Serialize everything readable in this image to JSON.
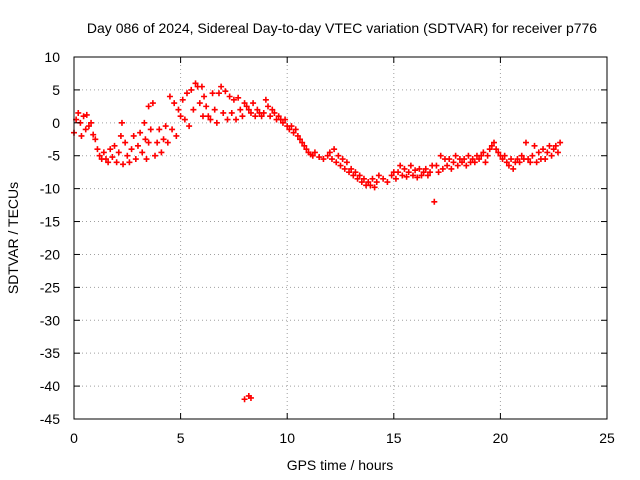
{
  "chart_data": {
    "type": "scatter",
    "title": "Day 086 of 2024, Sidereal Day-to-day VTEC variation (SDTVAR) for receiver p776",
    "xlabel": "GPS time / hours",
    "ylabel": "SDTVAR / TECUs",
    "xlim": [
      0,
      25
    ],
    "ylim": [
      -45,
      10
    ],
    "xticks": [
      0,
      5,
      10,
      15,
      20,
      25
    ],
    "yticks": [
      10,
      5,
      0,
      -5,
      -10,
      -15,
      -20,
      -25,
      -30,
      -35,
      -40,
      -45
    ],
    "grid": true,
    "marker": "plus",
    "color": "#ff0000",
    "series": [
      {
        "name": "SDTVAR",
        "points": [
          [
            0.0,
            -1.5
          ],
          [
            0.1,
            0.5
          ],
          [
            0.2,
            1.5
          ],
          [
            0.3,
            0.0
          ],
          [
            0.35,
            -2.0
          ],
          [
            0.45,
            1.0
          ],
          [
            0.55,
            -1.0
          ],
          [
            0.6,
            1.2
          ],
          [
            0.7,
            -0.5
          ],
          [
            0.8,
            0.0
          ],
          [
            0.9,
            -1.8
          ],
          [
            1.0,
            -2.5
          ],
          [
            1.1,
            -4.0
          ],
          [
            1.2,
            -5.0
          ],
          [
            1.3,
            -5.5
          ],
          [
            1.4,
            -4.5
          ],
          [
            1.5,
            -5.5
          ],
          [
            1.6,
            -6.0
          ],
          [
            1.7,
            -4.0
          ],
          [
            1.8,
            -5.2
          ],
          [
            1.9,
            -3.5
          ],
          [
            2.0,
            -6.0
          ],
          [
            2.1,
            -4.5
          ],
          [
            2.2,
            -2.0
          ],
          [
            2.25,
            0.0
          ],
          [
            2.3,
            -6.3
          ],
          [
            2.4,
            -3.0
          ],
          [
            2.5,
            -5.0
          ],
          [
            2.6,
            -6.0
          ],
          [
            2.7,
            -4.0
          ],
          [
            2.8,
            -2.0
          ],
          [
            2.9,
            -5.5
          ],
          [
            3.0,
            -3.5
          ],
          [
            3.1,
            -1.5
          ],
          [
            3.2,
            -4.5
          ],
          [
            3.3,
            0.0
          ],
          [
            3.35,
            -2.5
          ],
          [
            3.4,
            -5.5
          ],
          [
            3.5,
            -3.0
          ],
          [
            3.5,
            2.5
          ],
          [
            3.6,
            -1.0
          ],
          [
            3.7,
            3.0
          ],
          [
            3.8,
            -5.0
          ],
          [
            3.9,
            -3.0
          ],
          [
            4.0,
            -1.0
          ],
          [
            4.1,
            -4.5
          ],
          [
            4.2,
            -2.5
          ],
          [
            4.3,
            -0.5
          ],
          [
            4.4,
            -3.0
          ],
          [
            4.5,
            4.0
          ],
          [
            4.6,
            -1.0
          ],
          [
            4.7,
            3.0
          ],
          [
            4.8,
            -2.0
          ],
          [
            4.9,
            2.0
          ],
          [
            5.0,
            1.0
          ],
          [
            5.1,
            3.5
          ],
          [
            5.2,
            0.5
          ],
          [
            5.3,
            4.5
          ],
          [
            5.4,
            -0.5
          ],
          [
            5.5,
            5.0
          ],
          [
            5.6,
            2.0
          ],
          [
            5.7,
            6.0
          ],
          [
            5.8,
            5.5
          ],
          [
            5.9,
            3.0
          ],
          [
            6.0,
            5.5
          ],
          [
            6.05,
            1.0
          ],
          [
            6.1,
            4.0
          ],
          [
            6.2,
            2.5
          ],
          [
            6.3,
            1.0
          ],
          [
            6.4,
            0.5
          ],
          [
            6.5,
            4.5
          ],
          [
            6.6,
            2.0
          ],
          [
            6.7,
            0.0
          ],
          [
            6.8,
            4.5
          ],
          [
            6.9,
            5.5
          ],
          [
            7.0,
            1.5
          ],
          [
            7.1,
            4.8
          ],
          [
            7.2,
            0.5
          ],
          [
            7.3,
            4.0
          ],
          [
            7.4,
            1.5
          ],
          [
            7.5,
            3.5
          ],
          [
            7.6,
            0.5
          ],
          [
            7.7,
            3.8
          ],
          [
            7.8,
            2.0
          ],
          [
            7.9,
            1.0
          ],
          [
            8.0,
            3.0
          ],
          [
            8.1,
            2.5
          ],
          [
            8.2,
            2.0
          ],
          [
            8.3,
            1.5
          ],
          [
            8.4,
            3.0
          ],
          [
            8.5,
            1.0
          ],
          [
            8.6,
            2.0
          ],
          [
            8.7,
            1.5
          ],
          [
            8.8,
            1.0
          ],
          [
            8.9,
            1.5
          ],
          [
            9.0,
            3.5
          ],
          [
            9.1,
            2.5
          ],
          [
            9.2,
            1.0
          ],
          [
            9.3,
            2.0
          ],
          [
            9.4,
            1.5
          ],
          [
            9.5,
            0.5
          ],
          [
            9.6,
            1.0
          ],
          [
            9.7,
            0.5
          ],
          [
            9.8,
            0.0
          ],
          [
            9.9,
            0.5
          ],
          [
            10.0,
            -0.5
          ],
          [
            10.1,
            -1.0
          ],
          [
            10.2,
            -0.5
          ],
          [
            10.3,
            -1.5
          ],
          [
            10.4,
            -1.0
          ],
          [
            10.5,
            -2.0
          ],
          [
            10.6,
            -2.5
          ],
          [
            10.7,
            -3.0
          ],
          [
            10.8,
            -3.5
          ],
          [
            10.9,
            -4.0
          ],
          [
            11.0,
            -4.5
          ],
          [
            11.1,
            -4.8
          ],
          [
            11.2,
            -5.0
          ],
          [
            11.3,
            -4.5
          ],
          [
            11.5,
            -5.2
          ],
          [
            11.7,
            -5.5
          ],
          [
            11.9,
            -5.0
          ],
          [
            12.0,
            -4.5
          ],
          [
            12.1,
            -5.5
          ],
          [
            12.2,
            -4.0
          ],
          [
            12.3,
            -6.0
          ],
          [
            12.4,
            -5.0
          ],
          [
            12.5,
            -6.5
          ],
          [
            12.6,
            -5.5
          ],
          [
            12.7,
            -7.0
          ],
          [
            12.8,
            -6.0
          ],
          [
            12.9,
            -7.5
          ],
          [
            13.0,
            -7.0
          ],
          [
            13.1,
            -8.0
          ],
          [
            13.2,
            -7.5
          ],
          [
            13.3,
            -8.5
          ],
          [
            13.4,
            -8.0
          ],
          [
            13.5,
            -9.0
          ],
          [
            13.6,
            -8.5
          ],
          [
            13.7,
            -9.5
          ],
          [
            13.8,
            -9.0
          ],
          [
            13.9,
            -9.5
          ],
          [
            14.0,
            -8.5
          ],
          [
            14.1,
            -9.8
          ],
          [
            14.2,
            -9.0
          ],
          [
            14.3,
            -8.0
          ],
          [
            14.5,
            -8.5
          ],
          [
            14.7,
            -9.0
          ],
          [
            14.9,
            -8.0
          ],
          [
            15.0,
            -7.5
          ],
          [
            15.1,
            -8.5
          ],
          [
            15.2,
            -7.5
          ],
          [
            15.3,
            -6.5
          ],
          [
            15.4,
            -8.0
          ],
          [
            15.5,
            -7.0
          ],
          [
            15.6,
            -8.2
          ],
          [
            15.7,
            -7.5
          ],
          [
            15.8,
            -6.5
          ],
          [
            15.9,
            -8.0
          ],
          [
            16.0,
            -7.2
          ],
          [
            16.1,
            -8.3
          ],
          [
            16.2,
            -7.0
          ],
          [
            16.3,
            -8.0
          ],
          [
            16.4,
            -7.5
          ],
          [
            16.5,
            -7.0
          ],
          [
            16.6,
            -8.0
          ],
          [
            16.7,
            -7.5
          ],
          [
            16.8,
            -6.5
          ],
          [
            16.9,
            -12.0
          ],
          [
            17.0,
            -6.5
          ],
          [
            17.1,
            -7.5
          ],
          [
            17.2,
            -5.0
          ],
          [
            17.3,
            -7.0
          ],
          [
            17.4,
            -5.5
          ],
          [
            17.5,
            -6.5
          ],
          [
            17.6,
            -5.5
          ],
          [
            17.7,
            -7.0
          ],
          [
            17.8,
            -6.0
          ],
          [
            17.9,
            -5.0
          ],
          [
            18.0,
            -6.5
          ],
          [
            18.1,
            -5.5
          ],
          [
            18.2,
            -6.0
          ],
          [
            18.3,
            -5.5
          ],
          [
            18.4,
            -6.5
          ],
          [
            18.5,
            -5.0
          ],
          [
            18.6,
            -6.0
          ],
          [
            18.7,
            -5.5
          ],
          [
            18.8,
            -6.0
          ],
          [
            18.9,
            -5.0
          ],
          [
            19.0,
            -5.5
          ],
          [
            19.1,
            -5.0
          ],
          [
            19.2,
            -4.5
          ],
          [
            19.3,
            -6.0
          ],
          [
            19.4,
            -5.0
          ],
          [
            19.5,
            -4.0
          ],
          [
            19.6,
            -3.5
          ],
          [
            19.7,
            -3.0
          ],
          [
            19.8,
            -4.0
          ],
          [
            19.9,
            -4.5
          ],
          [
            20.0,
            -5.0
          ],
          [
            20.1,
            -5.5
          ],
          [
            20.2,
            -5.0
          ],
          [
            20.3,
            -6.0
          ],
          [
            20.4,
            -6.5
          ],
          [
            20.5,
            -5.5
          ],
          [
            20.6,
            -7.0
          ],
          [
            20.7,
            -6.0
          ],
          [
            20.8,
            -5.5
          ],
          [
            20.9,
            -6.0
          ],
          [
            21.0,
            -5.0
          ],
          [
            21.1,
            -5.5
          ],
          [
            21.2,
            -3.0
          ],
          [
            21.3,
            -5.5
          ],
          [
            21.4,
            -6.0
          ],
          [
            21.5,
            -5.0
          ],
          [
            21.6,
            -3.5
          ],
          [
            21.7,
            -6.0
          ],
          [
            21.8,
            -4.5
          ],
          [
            21.9,
            -5.5
          ],
          [
            22.0,
            -4.0
          ],
          [
            22.1,
            -5.5
          ],
          [
            22.2,
            -4.5
          ],
          [
            22.3,
            -3.5
          ],
          [
            22.4,
            -5.0
          ],
          [
            22.5,
            -4.0
          ],
          [
            22.6,
            -3.5
          ],
          [
            22.7,
            -4.5
          ],
          [
            22.8,
            -3.0
          ],
          [
            8.0,
            -42.0
          ],
          [
            8.2,
            -41.5
          ],
          [
            8.3,
            -41.8
          ]
        ]
      }
    ]
  }
}
